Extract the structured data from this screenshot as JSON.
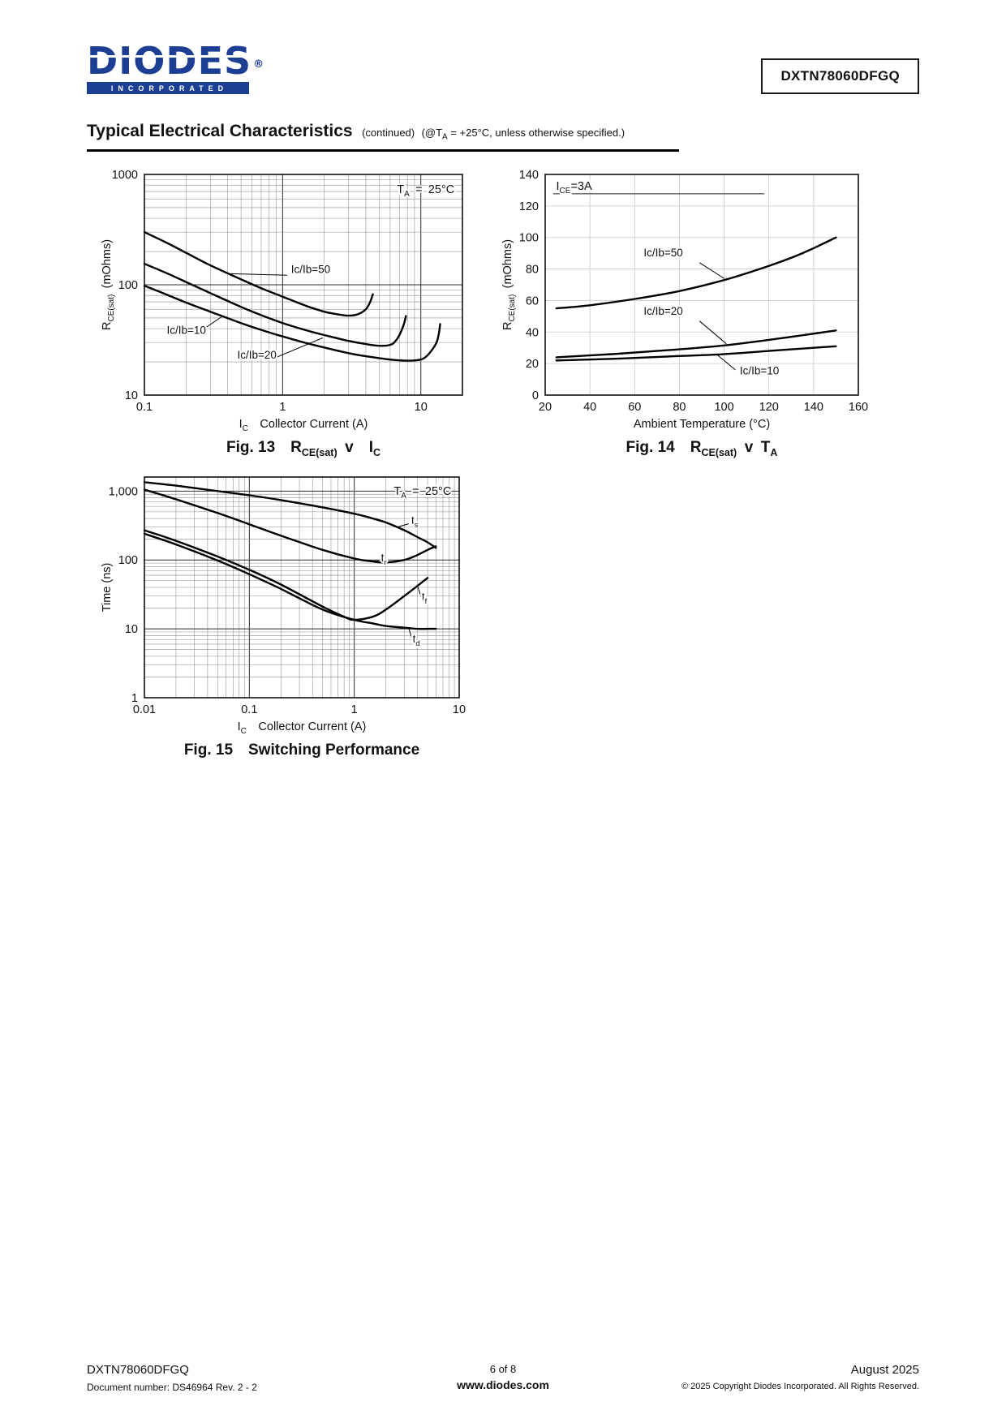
{
  "page": {
    "header": {
      "logo_text": "DIODES",
      "logo_registered": "®",
      "logo_sub": "INCORPORATED",
      "part_number": "DXTN78060DFGQ"
    },
    "section_title": {
      "title": "Typical Electrical Characteristics",
      "continued": "(continued)",
      "cond_prefix": "(@T",
      "cond_sub": "A",
      "cond_suffix": " = +25°C, unless otherwise specified.)"
    },
    "footer": {
      "part_number": "DXTN78060DFGQ",
      "doc_number": "Document number: DS46964 Rev. 2 - 2",
      "page_info": "6 of 8",
      "website": "www.diodes.com",
      "date": "August 2025",
      "copyright": "© 2025 Copyright Diodes Incorporated. All Rights Reserved."
    },
    "colors": {
      "logo_blue": "#1c3f94",
      "curve_black": "#000000",
      "grid_minor": "#8c8c8c",
      "grid_major": "#2b2b2b"
    }
  },
  "chart_data": [
    {
      "id": "fig13",
      "type": "line",
      "caption": [
        {
          "t": "Fig. 13  R"
        },
        {
          "t": "CE(sat)",
          "sub": true
        },
        {
          "t": " v  I"
        },
        {
          "t": "C",
          "sub": true
        }
      ],
      "annotation": {
        "segments": [
          {
            "t": "T"
          },
          {
            "t": "A",
            "sub": true
          },
          {
            "t": " = 25°C"
          }
        ],
        "fx": 0.975,
        "fy": 0.085,
        "align": "end"
      },
      "x_axis": {
        "scale": "log",
        "min": 0.1,
        "max": 20,
        "ticks": [
          {
            "v": 0.1,
            "l": "0.1"
          },
          {
            "v": 1,
            "l": "1"
          },
          {
            "v": 10,
            "l": "10"
          }
        ],
        "label": [
          {
            "t": "I"
          },
          {
            "t": "C",
            "sub": true
          },
          {
            "t": "  Collector Current (A)"
          }
        ]
      },
      "y_axis": {
        "scale": "log",
        "min": 10,
        "max": 1000,
        "ticks": [
          {
            "v": 10,
            "l": "10"
          },
          {
            "v": 100,
            "l": "100"
          },
          {
            "v": 1000,
            "l": "1000"
          }
        ],
        "label": [
          {
            "t": "R"
          },
          {
            "t": "CE(sat)",
            "sub": true
          },
          {
            "t": " (mOhms)"
          }
        ]
      },
      "series": [
        {
          "name": "Ic/Ib=50",
          "points": [
            [
              0.1,
              300
            ],
            [
              0.15,
              235
            ],
            [
              0.2,
              195
            ],
            [
              0.3,
              150
            ],
            [
              0.5,
              112
            ],
            [
              0.7,
              93
            ],
            [
              1,
              78
            ],
            [
              1.5,
              64
            ],
            [
              2,
              57
            ],
            [
              2.5,
              54
            ],
            [
              3,
              52.5
            ],
            [
              3.5,
              54
            ],
            [
              4,
              60
            ],
            [
              4.3,
              70
            ],
            [
              4.5,
              82
            ]
          ]
        },
        {
          "name": "Ic/Ib=20",
          "points": [
            [
              0.1,
              155
            ],
            [
              0.15,
              125
            ],
            [
              0.2,
              106
            ],
            [
              0.3,
              84
            ],
            [
              0.5,
              63
            ],
            [
              0.7,
              53
            ],
            [
              1,
              45
            ],
            [
              1.5,
              38.5
            ],
            [
              2,
              35
            ],
            [
              3,
              31
            ],
            [
              4,
              29
            ],
            [
              5,
              28
            ],
            [
              6,
              28.5
            ],
            [
              6.5,
              30.5
            ],
            [
              7,
              35
            ],
            [
              7.5,
              43
            ],
            [
              7.8,
              52
            ]
          ]
        },
        {
          "name": "Ic/Ib=10",
          "points": [
            [
              0.1,
              98
            ],
            [
              0.15,
              80
            ],
            [
              0.2,
              69
            ],
            [
              0.3,
              57
            ],
            [
              0.5,
              45
            ],
            [
              0.7,
              39
            ],
            [
              1,
              34
            ],
            [
              1.5,
              29.5
            ],
            [
              2,
              27
            ],
            [
              3,
              24
            ],
            [
              4,
              22.5
            ],
            [
              6,
              21
            ],
            [
              8,
              20.5
            ],
            [
              10,
              21
            ],
            [
              11,
              22.5
            ],
            [
              12,
              25.5
            ],
            [
              13,
              30
            ],
            [
              13.5,
              36
            ],
            [
              13.8,
              44
            ]
          ]
        }
      ],
      "labels": [
        {
          "text": "Ic/Ib=50",
          "x": 1.15,
          "y": 128,
          "align": "start",
          "leader": [
            [
              1.08,
              122
            ],
            [
              0.42,
              126
            ]
          ]
        },
        {
          "text": "Ic/Ib=10",
          "x": 0.145,
          "y": 36,
          "align": "start",
          "leader": [
            [
              0.27,
              40
            ],
            [
              0.36,
              51
            ]
          ]
        },
        {
          "text": "Ic/Ib=20",
          "x": 0.47,
          "y": 21.5,
          "align": "start",
          "leader": [
            [
              0.9,
              22
            ],
            [
              1.95,
              33
            ]
          ]
        }
      ]
    },
    {
      "id": "fig14",
      "type": "line",
      "caption": [
        {
          "t": "Fig. 14  R"
        },
        {
          "t": "CE(sat)",
          "sub": true
        },
        {
          "t": " v T"
        },
        {
          "t": "A",
          "sub": true
        }
      ],
      "annotation": {
        "segments": [
          {
            "t": "I"
          },
          {
            "t": "CE",
            "sub": true
          },
          {
            "t": "=3A"
          }
        ],
        "fx": 0.035,
        "fy": 0.07,
        "align": "start"
      },
      "rules": [
        {
          "x1f": 0.025,
          "x2f": 0.7,
          "yf": 0.088
        }
      ],
      "x_axis": {
        "scale": "linear",
        "min": 20,
        "max": 160,
        "ticks": [
          {
            "v": 20,
            "l": "20"
          },
          {
            "v": 40,
            "l": "40"
          },
          {
            "v": 60,
            "l": "60"
          },
          {
            "v": 80,
            "l": "80"
          },
          {
            "v": 100,
            "l": "100"
          },
          {
            "v": 120,
            "l": "120"
          },
          {
            "v": 140,
            "l": "140"
          },
          {
            "v": 160,
            "l": "160"
          }
        ],
        "label": [
          {
            "t": "Ambient Temperature (°C)"
          }
        ]
      },
      "y_axis": {
        "scale": "linear",
        "min": 0,
        "max": 140,
        "ticks": [
          {
            "v": 0,
            "l": "0"
          },
          {
            "v": 20,
            "l": "20"
          },
          {
            "v": 40,
            "l": "40"
          },
          {
            "v": 60,
            "l": "60"
          },
          {
            "v": 80,
            "l": "80"
          },
          {
            "v": 100,
            "l": "100"
          },
          {
            "v": 120,
            "l": "120"
          },
          {
            "v": 140,
            "l": "140"
          }
        ],
        "label": [
          {
            "t": "R"
          },
          {
            "t": "CE(sat)",
            "sub": true
          },
          {
            "t": " (mOhms)"
          }
        ]
      },
      "series": [
        {
          "name": "Ic/Ib=50",
          "points": [
            [
              25,
              55
            ],
            [
              40,
              57
            ],
            [
              60,
              61
            ],
            [
              80,
              66
            ],
            [
              100,
              73
            ],
            [
              120,
              82
            ],
            [
              135,
              90
            ],
            [
              150,
              100
            ]
          ]
        },
        {
          "name": "Ic/Ib=20",
          "points": [
            [
              25,
              24
            ],
            [
              50,
              26
            ],
            [
              75,
              28.5
            ],
            [
              100,
              31.5
            ],
            [
              125,
              36
            ],
            [
              150,
              41
            ]
          ]
        },
        {
          "name": "Ic/Ib=10",
          "points": [
            [
              25,
              22
            ],
            [
              50,
              23
            ],
            [
              75,
              24.5
            ],
            [
              100,
              26
            ],
            [
              125,
              28.5
            ],
            [
              150,
              31
            ]
          ]
        }
      ],
      "labels": [
        {
          "text": "Ic/Ib=50",
          "x": 64,
          "y": 88,
          "align": "start",
          "leader": [
            [
              89,
              84
            ],
            [
              100,
              74
            ]
          ]
        },
        {
          "text": "Ic/Ib=20",
          "x": 64,
          "y": 51,
          "align": "start",
          "leader": [
            [
              89,
              47
            ],
            [
              101,
              32.5
            ]
          ]
        },
        {
          "text": "Ic/Ib=10",
          "x": 107,
          "y": 13,
          "align": "start",
          "leader": [
            [
              105,
              16
            ],
            [
              97,
              25.5
            ]
          ]
        }
      ]
    },
    {
      "id": "fig15",
      "type": "line",
      "caption": [
        {
          "t": "Fig. 15  Switching Performance"
        }
      ],
      "annotation": {
        "segments": [
          {
            "t": "T"
          },
          {
            "t": "A",
            "sub": true
          },
          {
            "t": " = 25°C"
          }
        ],
        "fx": 0.975,
        "fy": 0.08,
        "align": "end"
      },
      "x_axis": {
        "scale": "log",
        "min": 0.01,
        "max": 10,
        "ticks": [
          {
            "v": 0.01,
            "l": "0.01"
          },
          {
            "v": 0.1,
            "l": "0.1"
          },
          {
            "v": 1,
            "l": "1"
          },
          {
            "v": 10,
            "l": "10"
          }
        ],
        "label": [
          {
            "t": "I"
          },
          {
            "t": "C",
            "sub": true
          },
          {
            "t": "  Collector Current (A)"
          }
        ]
      },
      "y_axis": {
        "scale": "log",
        "min": 1,
        "max": 1600,
        "ticks": [
          {
            "v": 1,
            "l": "1"
          },
          {
            "v": 10,
            "l": "10"
          },
          {
            "v": 100,
            "l": "100"
          },
          {
            "v": 1000,
            "l": "1,000"
          }
        ],
        "label": [
          {
            "t": "Time (ns)"
          }
        ]
      },
      "series": [
        {
          "name": "ts",
          "points": [
            [
              0.01,
              1350
            ],
            [
              0.02,
              1200
            ],
            [
              0.05,
              1000
            ],
            [
              0.1,
              870
            ],
            [
              0.2,
              740
            ],
            [
              0.5,
              580
            ],
            [
              1,
              470
            ],
            [
              1.5,
              400
            ],
            [
              2,
              350
            ],
            [
              3,
              270
            ],
            [
              4,
              215
            ],
            [
              5,
              180
            ],
            [
              6,
              150
            ]
          ]
        },
        {
          "name": "tr",
          "points": [
            [
              0.01,
              1050
            ],
            [
              0.02,
              760
            ],
            [
              0.05,
              480
            ],
            [
              0.1,
              330
            ],
            [
              0.2,
              225
            ],
            [
              0.5,
              140
            ],
            [
              1,
              105
            ],
            [
              1.5,
              95
            ],
            [
              2,
              92
            ],
            [
              3,
              100
            ],
            [
              4,
              118
            ],
            [
              5,
              140
            ],
            [
              6,
              158
            ]
          ]
        },
        {
          "name": "tf",
          "points": [
            [
              0.01,
              270
            ],
            [
              0.02,
              190
            ],
            [
              0.05,
              112
            ],
            [
              0.1,
              72
            ],
            [
              0.2,
              44
            ],
            [
              0.5,
              21
            ],
            [
              0.8,
              15
            ],
            [
              1,
              13.5
            ],
            [
              1.5,
              15
            ],
            [
              2,
              19
            ],
            [
              3,
              30
            ],
            [
              4,
              42
            ],
            [
              5,
              55
            ]
          ]
        },
        {
          "name": "td",
          "points": [
            [
              0.01,
              240
            ],
            [
              0.02,
              168
            ],
            [
              0.05,
              98
            ],
            [
              0.1,
              62
            ],
            [
              0.2,
              38
            ],
            [
              0.5,
              19
            ],
            [
              1,
              13.5
            ],
            [
              1.5,
              12
            ],
            [
              2,
              11
            ],
            [
              3,
              10.4
            ],
            [
              4,
              10
            ],
            [
              5,
              10
            ],
            [
              6,
              10
            ]
          ]
        }
      ],
      "labels": [
        {
          "segments": [
            {
              "t": "t"
            },
            {
              "t": "s",
              "sub": true
            }
          ],
          "x": 3.5,
          "y": 330,
          "align": "start",
          "leader": [
            [
              3.3,
              335
            ],
            [
              2.6,
              302
            ]
          ]
        },
        {
          "segments": [
            {
              "t": "t"
            },
            {
              "t": "r",
              "sub": true
            }
          ],
          "x": 1.8,
          "y": 95,
          "align": "start",
          "leader": [
            [
              1.72,
              97
            ],
            [
              1.48,
              96
            ]
          ]
        },
        {
          "segments": [
            {
              "t": "t"
            },
            {
              "t": "f",
              "sub": true
            }
          ],
          "x": 4.4,
          "y": 26,
          "align": "start",
          "leader": [
            [
              4.35,
              29
            ],
            [
              4.0,
              42
            ]
          ]
        },
        {
          "segments": [
            {
              "t": "t"
            },
            {
              "t": "d",
              "sub": true
            }
          ],
          "x": 3.6,
          "y": 6.3,
          "align": "start",
          "leader": [
            [
              3.55,
              7.2
            ],
            [
              3.3,
              10.2
            ]
          ]
        }
      ]
    }
  ]
}
